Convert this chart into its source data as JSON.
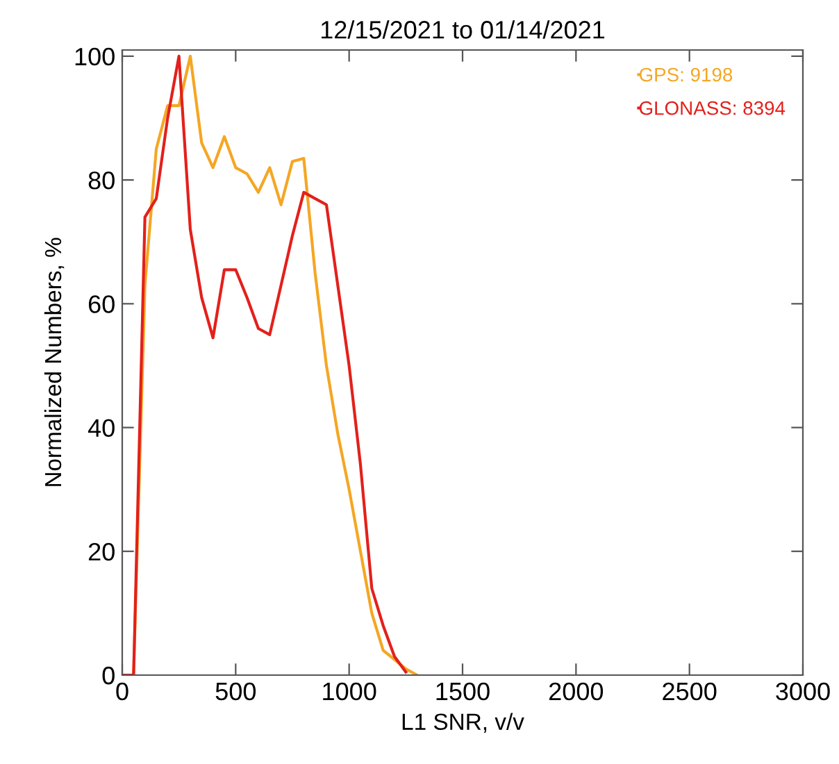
{
  "chart_data": {
    "type": "line",
    "title": "12/15/2021 to 01/14/2021",
    "xlabel": "L1 SNR, v/v",
    "ylabel": "Normalized Numbers, %",
    "xlim": [
      0,
      3000
    ],
    "xticks": [
      0,
      500,
      1000,
      1500,
      2000,
      2500,
      3000
    ],
    "ylim": [
      0,
      101
    ],
    "yticks": [
      0,
      20,
      40,
      60,
      80,
      100
    ],
    "grid": false,
    "legend": "top right",
    "marker": "none",
    "line_style": "solid",
    "series": [
      {
        "name": "GPS: 9198",
        "color": "#f5a623",
        "x": [
          0,
          50,
          100,
          150,
          200,
          250,
          300,
          350,
          400,
          450,
          500,
          550,
          600,
          650,
          700,
          750,
          800,
          850,
          900,
          950,
          1000,
          1050,
          1100,
          1150,
          1200,
          1250,
          1300
        ],
        "values": [
          0,
          0,
          63,
          85,
          92,
          92,
          100,
          86,
          82,
          87,
          82,
          81,
          78,
          82,
          76,
          83,
          83.5,
          65,
          50,
          39,
          30,
          20,
          10,
          4,
          2.5,
          1,
          0
        ]
      },
      {
        "name": "GLONASS: 8394",
        "color": "#e3201b",
        "x": [
          0,
          50,
          100,
          150,
          200,
          250,
          300,
          350,
          400,
          450,
          500,
          550,
          600,
          650,
          700,
          750,
          800,
          850,
          900,
          950,
          1000,
          1050,
          1100,
          1150,
          1200,
          1250
        ],
        "values": [
          0,
          0,
          74,
          77,
          90,
          100,
          72,
          61,
          54.5,
          65.5,
          65.5,
          61,
          56,
          55,
          63,
          71,
          78,
          77,
          76,
          63,
          50,
          34,
          14,
          8,
          3,
          0.5
        ]
      }
    ]
  }
}
